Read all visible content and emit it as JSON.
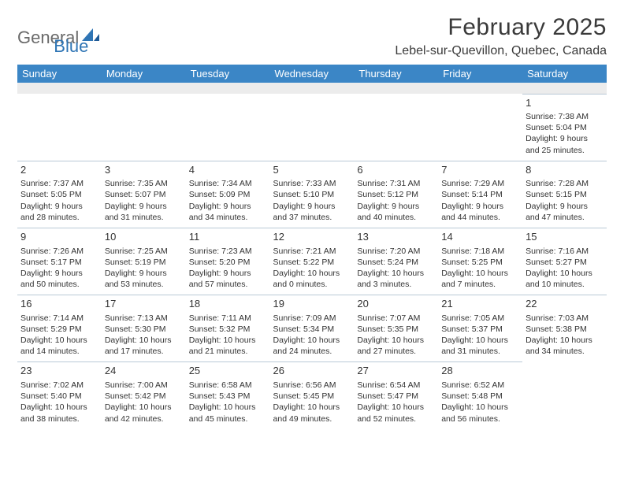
{
  "logo": {
    "text1": "General",
    "text2": "Blue"
  },
  "title": "February 2025",
  "location": "Lebel-sur-Quevillon, Quebec, Canada",
  "colors": {
    "header_bg": "#3b86c6",
    "header_text": "#ffffff",
    "blank_row": "#ececec",
    "cell_border": "#b9c9d6",
    "body_text": "#333333",
    "logo_gray": "#6a6a6a",
    "logo_blue": "#2f75b5",
    "page_bg": "#ffffff"
  },
  "day_names": [
    "Sunday",
    "Monday",
    "Tuesday",
    "Wednesday",
    "Thursday",
    "Friday",
    "Saturday"
  ],
  "weeks": [
    [
      null,
      null,
      null,
      null,
      null,
      null,
      {
        "n": "1",
        "sr": "Sunrise: 7:38 AM",
        "ss": "Sunset: 5:04 PM",
        "dl": "Daylight: 9 hours and 25 minutes."
      }
    ],
    [
      {
        "n": "2",
        "sr": "Sunrise: 7:37 AM",
        "ss": "Sunset: 5:05 PM",
        "dl": "Daylight: 9 hours and 28 minutes."
      },
      {
        "n": "3",
        "sr": "Sunrise: 7:35 AM",
        "ss": "Sunset: 5:07 PM",
        "dl": "Daylight: 9 hours and 31 minutes."
      },
      {
        "n": "4",
        "sr": "Sunrise: 7:34 AM",
        "ss": "Sunset: 5:09 PM",
        "dl": "Daylight: 9 hours and 34 minutes."
      },
      {
        "n": "5",
        "sr": "Sunrise: 7:33 AM",
        "ss": "Sunset: 5:10 PM",
        "dl": "Daylight: 9 hours and 37 minutes."
      },
      {
        "n": "6",
        "sr": "Sunrise: 7:31 AM",
        "ss": "Sunset: 5:12 PM",
        "dl": "Daylight: 9 hours and 40 minutes."
      },
      {
        "n": "7",
        "sr": "Sunrise: 7:29 AM",
        "ss": "Sunset: 5:14 PM",
        "dl": "Daylight: 9 hours and 44 minutes."
      },
      {
        "n": "8",
        "sr": "Sunrise: 7:28 AM",
        "ss": "Sunset: 5:15 PM",
        "dl": "Daylight: 9 hours and 47 minutes."
      }
    ],
    [
      {
        "n": "9",
        "sr": "Sunrise: 7:26 AM",
        "ss": "Sunset: 5:17 PM",
        "dl": "Daylight: 9 hours and 50 minutes."
      },
      {
        "n": "10",
        "sr": "Sunrise: 7:25 AM",
        "ss": "Sunset: 5:19 PM",
        "dl": "Daylight: 9 hours and 53 minutes."
      },
      {
        "n": "11",
        "sr": "Sunrise: 7:23 AM",
        "ss": "Sunset: 5:20 PM",
        "dl": "Daylight: 9 hours and 57 minutes."
      },
      {
        "n": "12",
        "sr": "Sunrise: 7:21 AM",
        "ss": "Sunset: 5:22 PM",
        "dl": "Daylight: 10 hours and 0 minutes."
      },
      {
        "n": "13",
        "sr": "Sunrise: 7:20 AM",
        "ss": "Sunset: 5:24 PM",
        "dl": "Daylight: 10 hours and 3 minutes."
      },
      {
        "n": "14",
        "sr": "Sunrise: 7:18 AM",
        "ss": "Sunset: 5:25 PM",
        "dl": "Daylight: 10 hours and 7 minutes."
      },
      {
        "n": "15",
        "sr": "Sunrise: 7:16 AM",
        "ss": "Sunset: 5:27 PM",
        "dl": "Daylight: 10 hours and 10 minutes."
      }
    ],
    [
      {
        "n": "16",
        "sr": "Sunrise: 7:14 AM",
        "ss": "Sunset: 5:29 PM",
        "dl": "Daylight: 10 hours and 14 minutes."
      },
      {
        "n": "17",
        "sr": "Sunrise: 7:13 AM",
        "ss": "Sunset: 5:30 PM",
        "dl": "Daylight: 10 hours and 17 minutes."
      },
      {
        "n": "18",
        "sr": "Sunrise: 7:11 AM",
        "ss": "Sunset: 5:32 PM",
        "dl": "Daylight: 10 hours and 21 minutes."
      },
      {
        "n": "19",
        "sr": "Sunrise: 7:09 AM",
        "ss": "Sunset: 5:34 PM",
        "dl": "Daylight: 10 hours and 24 minutes."
      },
      {
        "n": "20",
        "sr": "Sunrise: 7:07 AM",
        "ss": "Sunset: 5:35 PM",
        "dl": "Daylight: 10 hours and 27 minutes."
      },
      {
        "n": "21",
        "sr": "Sunrise: 7:05 AM",
        "ss": "Sunset: 5:37 PM",
        "dl": "Daylight: 10 hours and 31 minutes."
      },
      {
        "n": "22",
        "sr": "Sunrise: 7:03 AM",
        "ss": "Sunset: 5:38 PM",
        "dl": "Daylight: 10 hours and 34 minutes."
      }
    ],
    [
      {
        "n": "23",
        "sr": "Sunrise: 7:02 AM",
        "ss": "Sunset: 5:40 PM",
        "dl": "Daylight: 10 hours and 38 minutes."
      },
      {
        "n": "24",
        "sr": "Sunrise: 7:00 AM",
        "ss": "Sunset: 5:42 PM",
        "dl": "Daylight: 10 hours and 42 minutes."
      },
      {
        "n": "25",
        "sr": "Sunrise: 6:58 AM",
        "ss": "Sunset: 5:43 PM",
        "dl": "Daylight: 10 hours and 45 minutes."
      },
      {
        "n": "26",
        "sr": "Sunrise: 6:56 AM",
        "ss": "Sunset: 5:45 PM",
        "dl": "Daylight: 10 hours and 49 minutes."
      },
      {
        "n": "27",
        "sr": "Sunrise: 6:54 AM",
        "ss": "Sunset: 5:47 PM",
        "dl": "Daylight: 10 hours and 52 minutes."
      },
      {
        "n": "28",
        "sr": "Sunrise: 6:52 AM",
        "ss": "Sunset: 5:48 PM",
        "dl": "Daylight: 10 hours and 56 minutes."
      },
      null
    ]
  ]
}
